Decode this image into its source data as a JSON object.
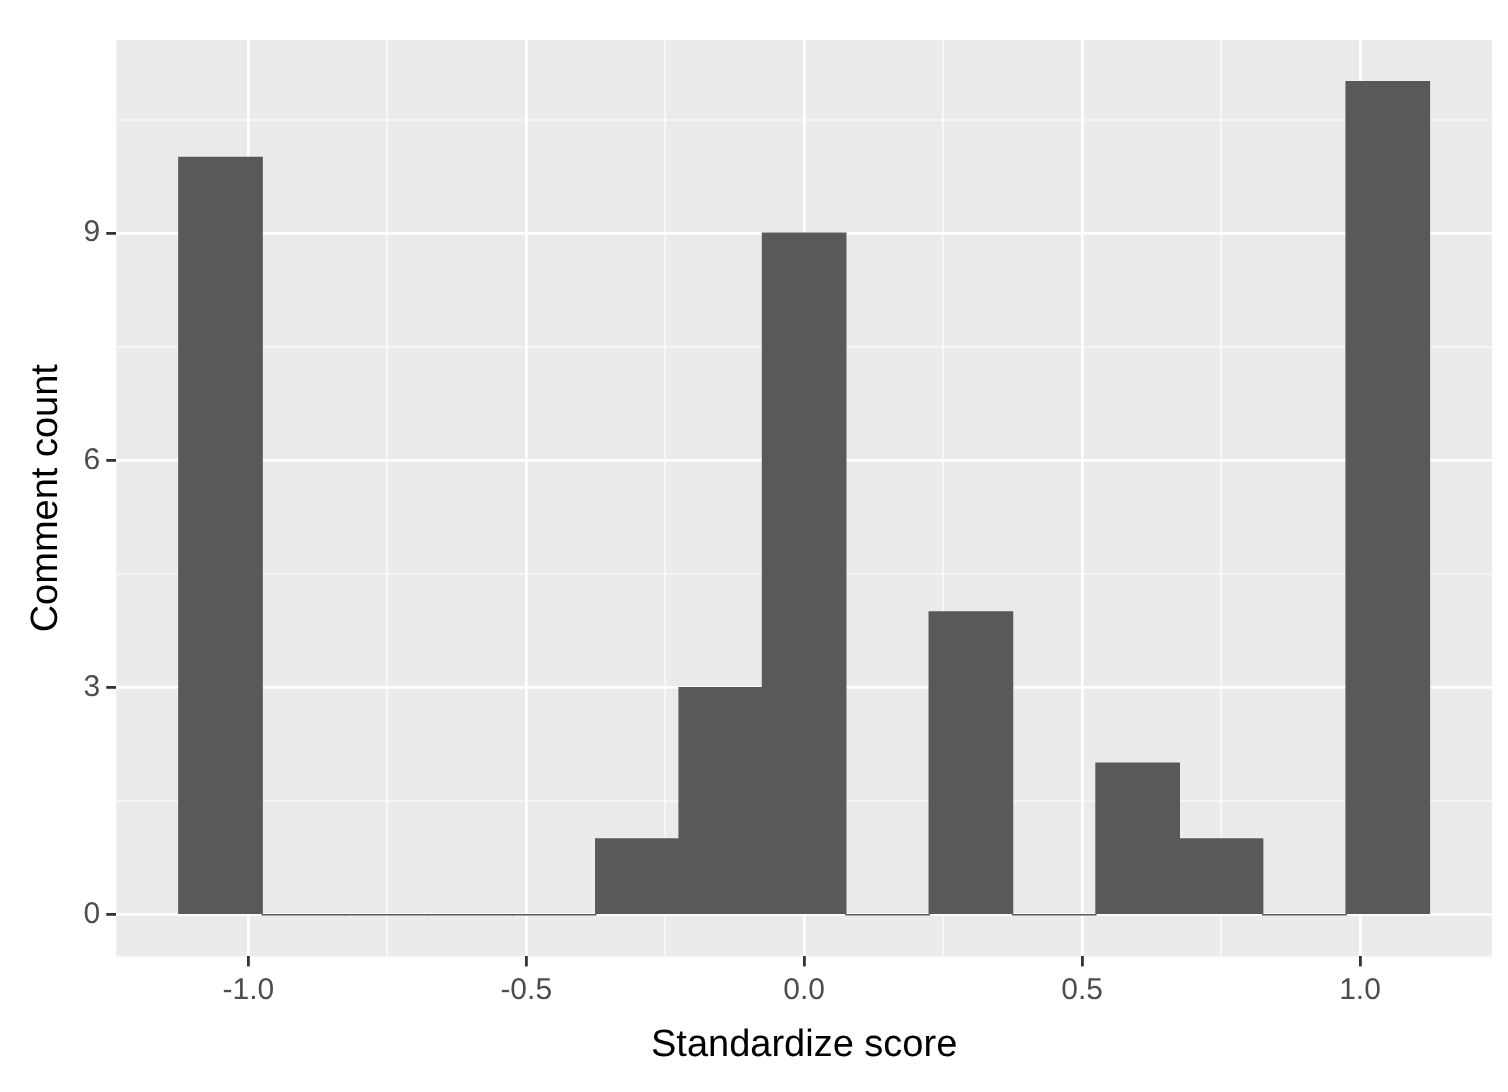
{
  "chart_data": {
    "type": "histogram",
    "xlabel": "Standardize score",
    "ylabel": "Comment count",
    "bins": [
      -1.125,
      -0.975,
      -0.825,
      -0.675,
      -0.525,
      -0.375,
      -0.225,
      -0.075,
      0.075,
      0.225,
      0.375,
      0.525,
      0.675,
      0.825,
      0.975,
      1.125
    ],
    "values": [
      10,
      0,
      0,
      0,
      0,
      1,
      3,
      9,
      0,
      4,
      0,
      2,
      1,
      0,
      11
    ],
    "color": "#595959",
    "xlim": [
      -1.2375,
      1.2375
    ],
    "xticks": [
      {
        "value": -1.0,
        "label": "-1.0"
      },
      {
        "value": -0.75,
        "label": null
      },
      {
        "value": -0.5,
        "label": "-0.5"
      },
      {
        "value": -0.25,
        "label": null
      },
      {
        "value": 0,
        "label": "0.0"
      },
      {
        "value": 0.25,
        "label": null
      },
      {
        "value": 0.5,
        "label": "0.5"
      },
      {
        "value": 0.75,
        "label": null
      },
      {
        "value": 1.0,
        "label": "1.0"
      }
    ],
    "ylim": [
      -0.55,
      11.55
    ],
    "yticks": [
      0,
      {
        "value": 1.5,
        "label": null
      },
      3,
      {
        "value": 4.5,
        "label": null
      },
      6,
      {
        "value": 7.5,
        "label": null
      },
      9,
      {
        "value": 10.5,
        "label": null
      }
    ],
    "grid": true,
    "legend": false
  }
}
